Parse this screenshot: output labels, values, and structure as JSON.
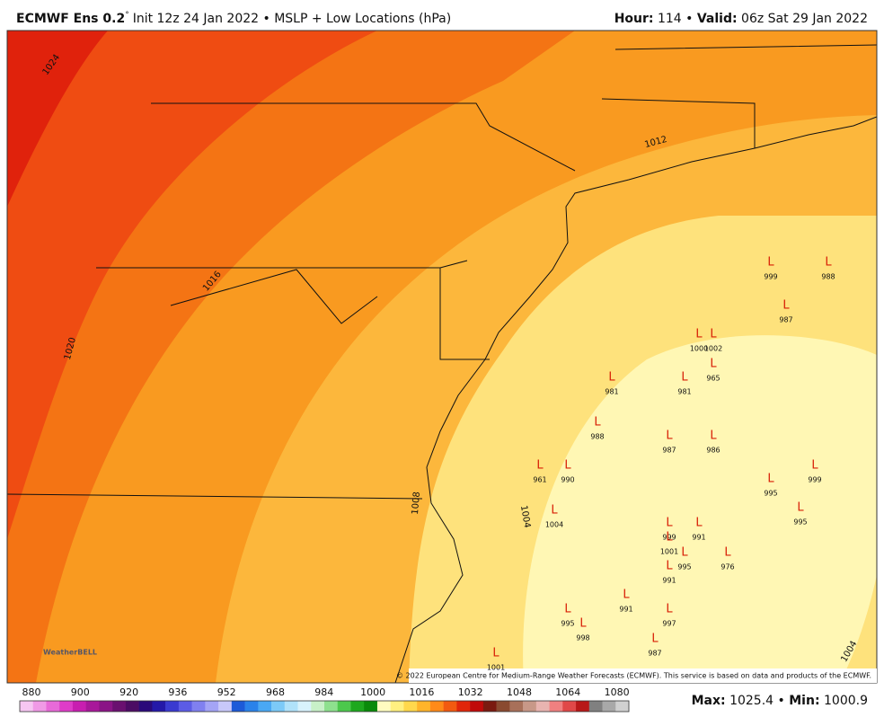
{
  "header": {
    "model": "ECMWF Ens 0.2",
    "degree": "°",
    "run": "Init 12z 24 Jan 2022 • MSLP + Low Locations (hPa)",
    "hour_label": "Hour:",
    "hour": 114,
    "sep": "•",
    "valid_label": "Valid:",
    "valid": "06z Sat 29 Jan 2022"
  },
  "isobar_labels": [
    1024,
    1020,
    1016,
    1012,
    1008,
    1004,
    1004
  ],
  "lows": [
    {
      "symbol": "L",
      "pressure": 999
    },
    {
      "symbol": "L",
      "pressure": 988
    },
    {
      "symbol": "L",
      "pressure": 987
    },
    {
      "symbol": "L",
      "pressure": 1000
    },
    {
      "symbol": "L",
      "pressure": 1002
    },
    {
      "symbol": "L",
      "pressure": 965
    },
    {
      "symbol": "L",
      "pressure": 981
    },
    {
      "symbol": "L",
      "pressure": 981
    },
    {
      "symbol": "L",
      "pressure": 988
    },
    {
      "symbol": "L",
      "pressure": 987
    },
    {
      "symbol": "L",
      "pressure": 986
    },
    {
      "symbol": "L",
      "pressure": 961
    },
    {
      "symbol": "L",
      "pressure": 990
    },
    {
      "symbol": "L",
      "pressure": 995
    },
    {
      "symbol": "L",
      "pressure": 999
    },
    {
      "symbol": "L",
      "pressure": 995
    },
    {
      "symbol": "L",
      "pressure": 1004
    },
    {
      "symbol": "L",
      "pressure": 999
    },
    {
      "symbol": "L",
      "pressure": 991
    },
    {
      "symbol": "L",
      "pressure": 1001
    },
    {
      "symbol": "L",
      "pressure": 995
    },
    {
      "symbol": "L",
      "pressure": 976
    },
    {
      "symbol": "L",
      "pressure": 991
    },
    {
      "symbol": "L",
      "pressure": 991
    },
    {
      "symbol": "L",
      "pressure": 995
    },
    {
      "symbol": "L",
      "pressure": 997
    },
    {
      "symbol": "L",
      "pressure": 998
    },
    {
      "symbol": "L",
      "pressure": 987
    },
    {
      "symbol": "L",
      "pressure": 1001
    }
  ],
  "logo": "WeatherBELL",
  "copyright": "© 2022 European Centre for Medium-Range Weather Forecasts (ECMWF). This service is based on data and products of the ECMWF.",
  "colorbar": {
    "labels": [
      880,
      900,
      920,
      936,
      952,
      968,
      984,
      1000,
      1016,
      1032,
      1048,
      1064,
      1080
    ]
  },
  "footer": {
    "max_label": "Max:",
    "max": 1025.4,
    "sep": "•",
    "min_label": "Min:",
    "min": 1000.9
  }
}
